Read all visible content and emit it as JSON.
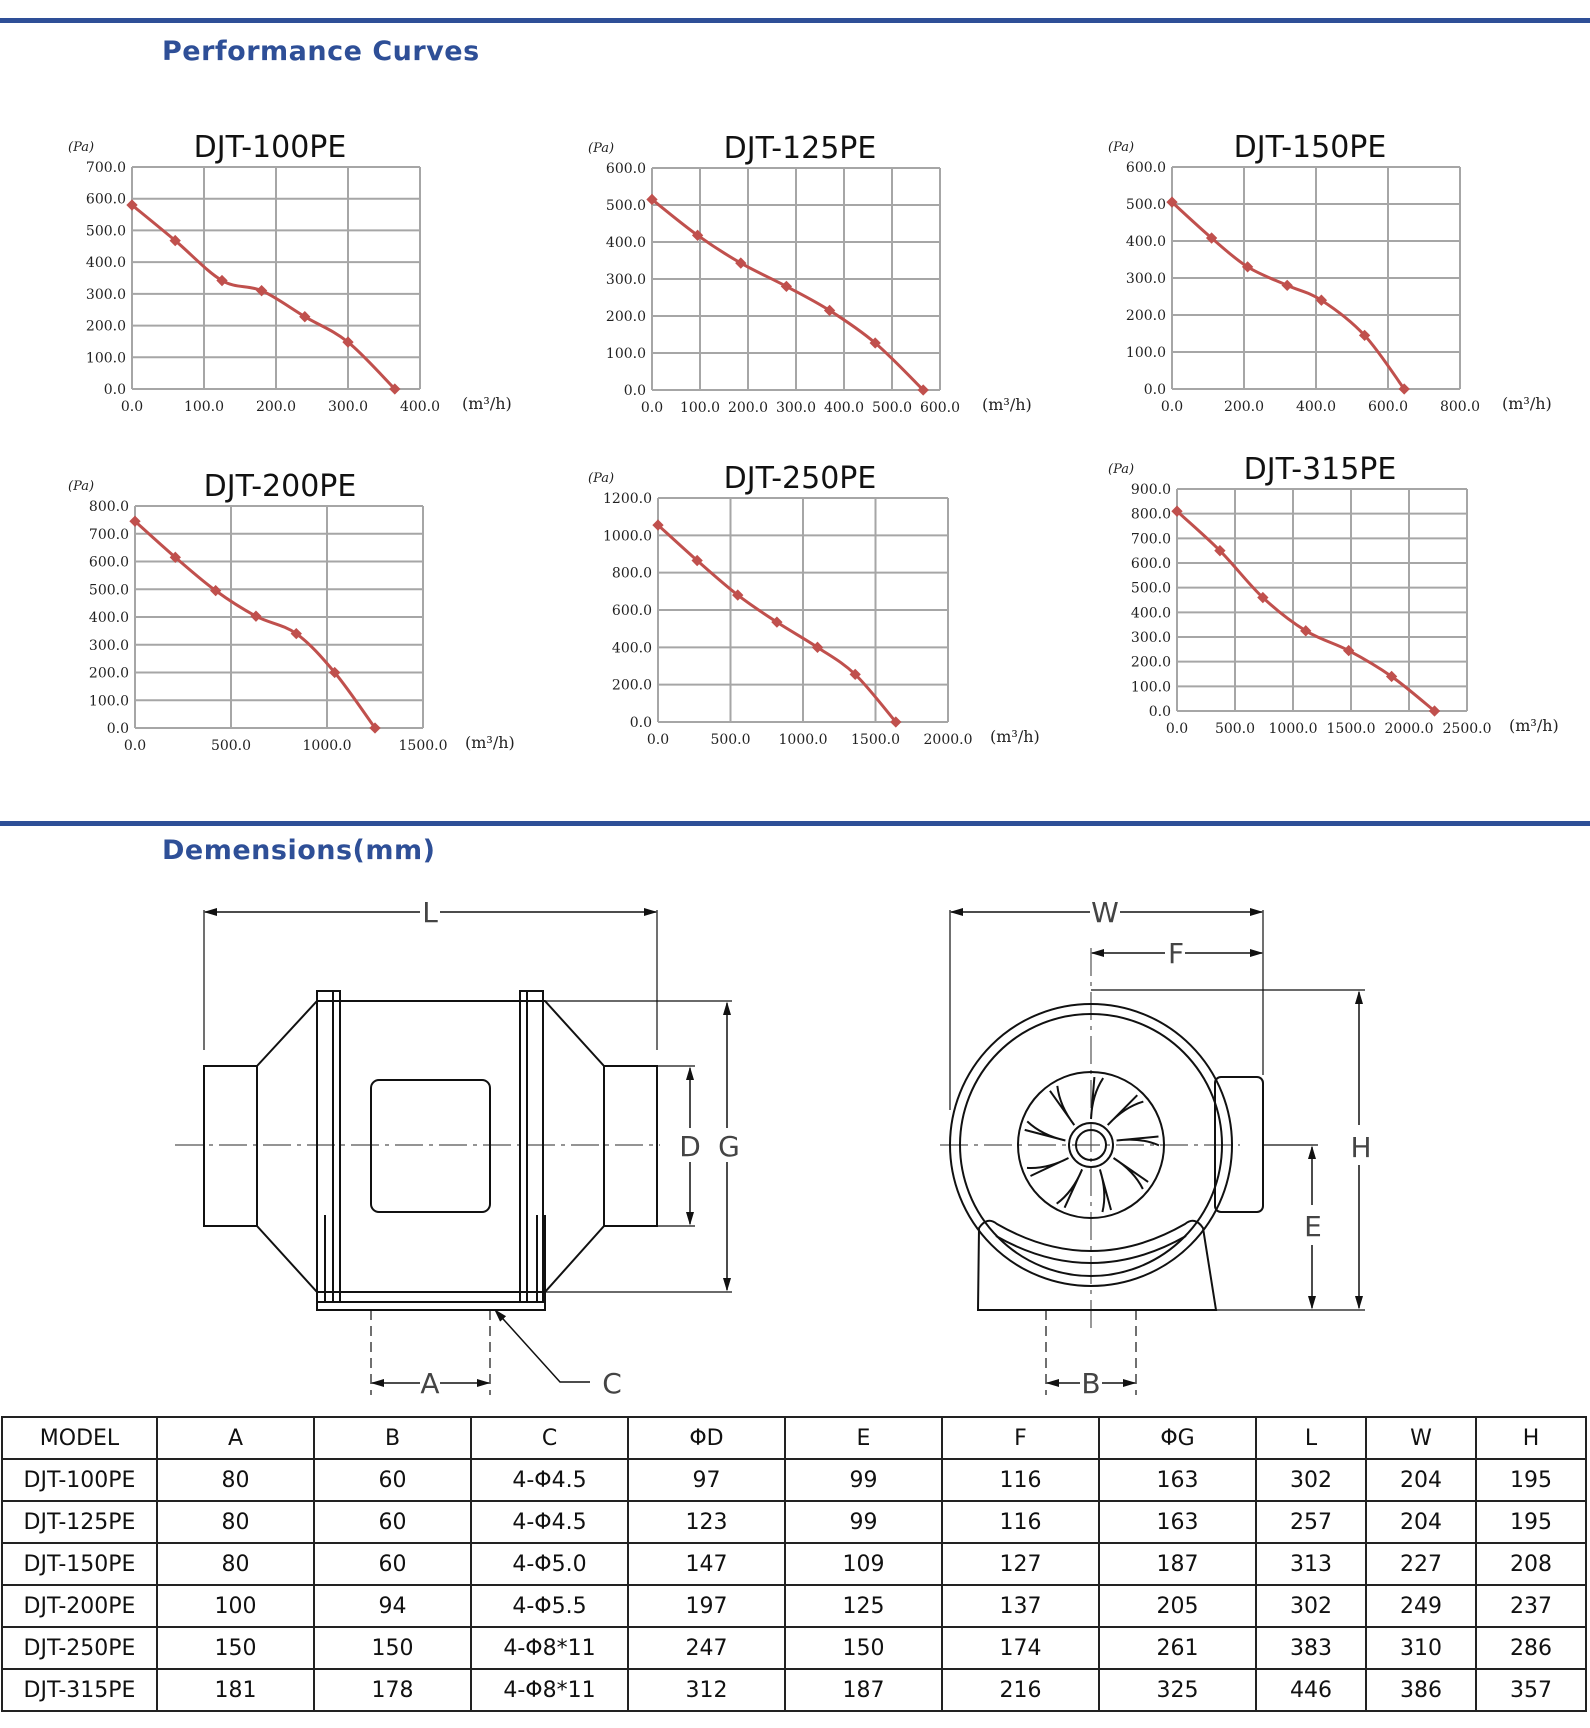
{
  "sections": {
    "performance_title": "Performance  Curves",
    "dimensions_title": "Demensions(mm)"
  },
  "colors": {
    "accent": "#2e4f97",
    "curve": "#c0504d",
    "grid": "#a6a6a6"
  },
  "chart_data": [
    {
      "type": "line",
      "title": "DJT-100PE",
      "ylabel": "(Pa)",
      "xlabel": "(m³/h)",
      "xlim": [
        0,
        400
      ],
      "ylim": [
        0,
        700
      ],
      "xticks": [
        "0.0",
        "100.0",
        "200.0",
        "300.0",
        "400.0"
      ],
      "yticks": [
        "0.0",
        "100.0",
        "200.0",
        "300.0",
        "400.0",
        "500.0",
        "600.0",
        "700.0"
      ],
      "x": [
        0,
        60,
        125,
        180,
        240,
        300,
        365
      ],
      "y": [
        580,
        468,
        342,
        310,
        228,
        148,
        0
      ]
    },
    {
      "type": "line",
      "title": "DJT-125PE",
      "ylabel": "(Pa)",
      "xlabel": "(m³/h)",
      "xlim": [
        0,
        600
      ],
      "ylim": [
        0,
        600
      ],
      "xticks": [
        "0.0",
        "100.0",
        "200.0",
        "300.0",
        "400.0",
        "500.0",
        "600.0"
      ],
      "yticks": [
        "0.0",
        "100.0",
        "200.0",
        "300.0",
        "400.0",
        "500.0",
        "600.0"
      ],
      "x": [
        0,
        95,
        185,
        280,
        370,
        465,
        565
      ],
      "y": [
        515,
        418,
        343,
        280,
        215,
        127,
        0
      ]
    },
    {
      "type": "line",
      "title": "DJT-150PE",
      "ylabel": "(Pa)",
      "xlabel": "(m³/h)",
      "xlim": [
        0,
        800
      ],
      "ylim": [
        0,
        600
      ],
      "xticks": [
        "0.0",
        "200.0",
        "400.0",
        "600.0",
        "800.0"
      ],
      "yticks": [
        "0.0",
        "100.0",
        "200.0",
        "300.0",
        "400.0",
        "500.0",
        "600.0"
      ],
      "x": [
        0,
        110,
        210,
        320,
        415,
        535,
        645
      ],
      "y": [
        505,
        408,
        330,
        280,
        240,
        145,
        0
      ]
    },
    {
      "type": "line",
      "title": "DJT-200PE",
      "ylabel": "(Pa)",
      "xlabel": "(m³/h)",
      "xlim": [
        0,
        1500
      ],
      "ylim": [
        0,
        800
      ],
      "xticks": [
        "0.0",
        "500.0",
        "1000.0",
        "1500.0"
      ],
      "yticks": [
        "0.0",
        "100.0",
        "200.0",
        "300.0",
        "400.0",
        "500.0",
        "600.0",
        "700.0",
        "800.0"
      ],
      "x": [
        0,
        210,
        420,
        630,
        840,
        1040,
        1250
      ],
      "y": [
        745,
        615,
        495,
        403,
        340,
        200,
        0
      ]
    },
    {
      "type": "line",
      "title": "DJT-250PE",
      "ylabel": "(Pa)",
      "xlabel": "(m³/h)",
      "xlim": [
        0,
        2000
      ],
      "ylim": [
        0,
        1200
      ],
      "xticks": [
        "0.0",
        "500.0",
        "1000.0",
        "1500.0",
        "2000.0"
      ],
      "yticks": [
        "0.0",
        "200.0",
        "400.0",
        "600.0",
        "800.0",
        "1000.0",
        "1200.0"
      ],
      "x": [
        0,
        270,
        550,
        820,
        1100,
        1360,
        1640
      ],
      "y": [
        1055,
        865,
        680,
        535,
        400,
        255,
        0
      ]
    },
    {
      "type": "line",
      "title": "DJT-315PE",
      "ylabel": "(Pa)",
      "xlabel": "(m³/h)",
      "xlim": [
        0,
        2500
      ],
      "ylim": [
        0,
        900
      ],
      "xticks": [
        "0.0",
        "500.0",
        "1000.0",
        "1500.0",
        "2000.0",
        "2500.0"
      ],
      "yticks": [
        "0.0",
        "100.0",
        "200.0",
        "300.0",
        "400.0",
        "500.0",
        "600.0",
        "700.0",
        "800.0",
        "900.0"
      ],
      "x": [
        0,
        370,
        740,
        1110,
        1480,
        1850,
        2220
      ],
      "y": [
        810,
        650,
        460,
        325,
        245,
        140,
        0
      ]
    }
  ],
  "diagram": {
    "side_labels": [
      "L",
      "D",
      "G",
      "A",
      "C"
    ],
    "front_labels": [
      "W",
      "F",
      "H",
      "E",
      "B"
    ]
  },
  "table": {
    "headers": [
      "MODEL",
      "A",
      "B",
      "C",
      "ΦD",
      "E",
      "F",
      "ΦG",
      "L",
      "W",
      "H"
    ],
    "rows": [
      [
        "DJT-100PE",
        "80",
        "60",
        "4-Φ4.5",
        "97",
        "99",
        "116",
        "163",
        "302",
        "204",
        "195"
      ],
      [
        "DJT-125PE",
        "80",
        "60",
        "4-Φ4.5",
        "123",
        "99",
        "116",
        "163",
        "257",
        "204",
        "195"
      ],
      [
        "DJT-150PE",
        "80",
        "60",
        "4-Φ5.0",
        "147",
        "109",
        "127",
        "187",
        "313",
        "227",
        "208"
      ],
      [
        "DJT-200PE",
        "100",
        "94",
        "4-Φ5.5",
        "197",
        "125",
        "137",
        "205",
        "302",
        "249",
        "237"
      ],
      [
        "DJT-250PE",
        "150",
        "150",
        "4-Φ8*11",
        "247",
        "150",
        "174",
        "261",
        "383",
        "310",
        "286"
      ],
      [
        "DJT-315PE",
        "181",
        "178",
        "4-Φ8*11",
        "312",
        "187",
        "216",
        "325",
        "446",
        "386",
        "357"
      ]
    ]
  }
}
